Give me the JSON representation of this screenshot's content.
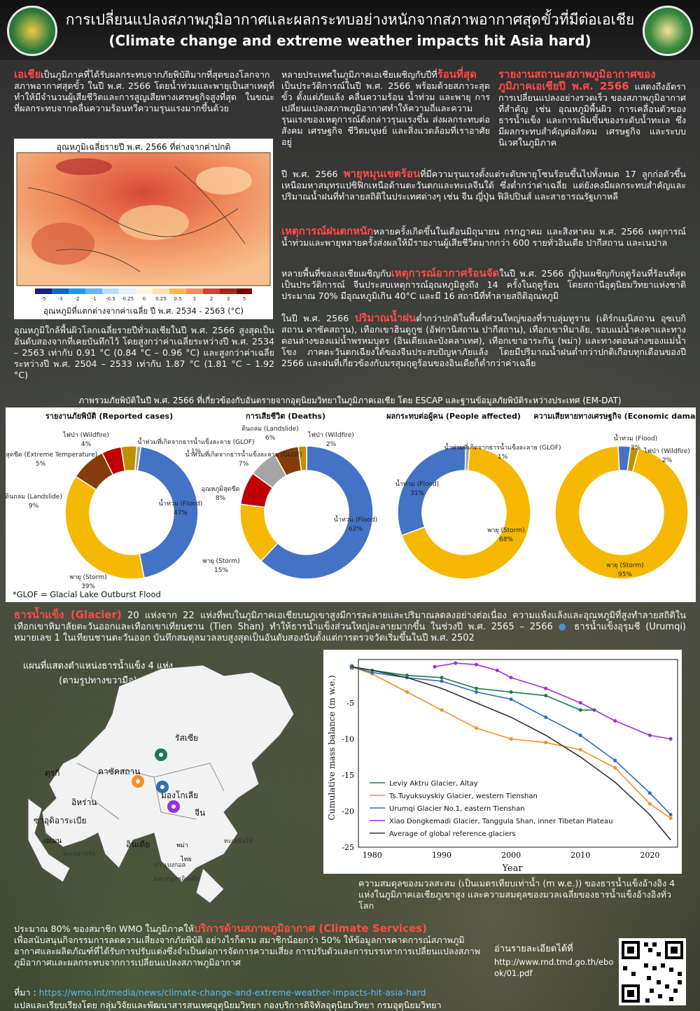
{
  "header": {
    "title_th": "การเปลี่ยนแปลงสภาพภูมิอากาศและผลกระทบอย่างหนักจากสภาพอากาศสุดขั้วที่มีต่อเอเชีย",
    "title_en": "(Climate change and extreme weather impacts hit Asia hard)"
  },
  "col1": {
    "highlight": "เอเชีย",
    "text": "เป็นภูมิภาคที่ได้รับผลกระทบจากภัยพิบัติมากที่สุดของโลกจากสภาพอากาศสุดขั้ว ในปี พ.ศ. 2566 โดยน้ำท่วมและพายุเป็นสาเหตุที่ทำให้มีจำนวนผู้เสียชีวิตและการสูญเสียทางเศรษฐกิจสูงที่สุด ในขณะที่ผลกระทบจากคลื่นความร้อนทวีความรุนแรงมากขึ้นด้วย"
  },
  "temp_map": {
    "title": "อุณหภูมิเฉลี่ยรายปี พ.ศ. 2566 ที่ต่างจากค่าปกติ",
    "scale": [
      "-5",
      "-3",
      "-2",
      "-1",
      "-0.5",
      "-0.25",
      "0",
      "0.25",
      "0.5",
      "1",
      "2",
      "3",
      "5"
    ],
    "colors": [
      "#1a237e",
      "#1565c0",
      "#2196f3",
      "#64b5f6",
      "#bbdefb",
      "#e3f2fd",
      "#fff8e1",
      "#ffe0b2",
      "#ffb74d",
      "#ff8a65",
      "#e53935",
      "#b71c1c",
      "#7f0000"
    ],
    "caption": "อุณหภูมิที่แตกต่างจากค่าเฉลี่ย ปี พ.ศ. 2534 - 2563 (°C)"
  },
  "col1_para2": "อุณหภูมิใกล้พื้นผิวโลกเฉลี่ยรายปีทั่วเอเชียในปี พ.ศ. 2566 สูงสุดเป็นอันดับสองจากที่เคยบันทึกไว้ โดยสูงกว่าค่าเฉลี่ยระหว่างปี พ.ศ. 2534 – 2563 เท่ากับ 0.91 °C (0.84 °C – 0.96 °C) และสูงกว่าค่าเฉลี่ยระหว่างปี พ.ศ. 2504 – 2533 เท่ากับ 1.87 °C (1.81 °C – 1.92 °C)",
  "col2": {
    "text_a": "หลายประเทศในภูมิภาคเอเชียเผชิญกับปีที่",
    "highlight": "ร้อนที่สุด",
    "text_b": "เป็นประวัติการณ์ในปี พ.ศ. 2566 พร้อมด้วยสภาวะสุดขั้ว ตั้งแต่ภัยแล้ง คลื่นความร้อน น้ำท่วม และพายุ การเปลี่ยนแปลงสภาพภูมิอากาศทำให้ความถี่และความรุนแรงของเหตุการณ์ดังกล่าวรุนแรงขึ้น ส่งผลกระทบต่อสังคม เศรษฐกิจ ชีวิตมนุษย์ และสิ่งแวดล้อมที่เราอาศัยอยู่"
  },
  "col3": {
    "highlight": "รายงานสถานะสภาพภูมิอากาศของภูมิภาคเอเชียปี พ.ศ. 2566",
    "text": " แสดงถึงอัตราการเปลี่ยนแปลงอย่างรวดเร็ว ของสภาพภูมิอากาศที่สำคัญ เช่น อุณหภูมิพื้นผิว การเคลื่อนตัวของธารน้ำแข็ง และการเพิ่มขึ้นของระดับน้ำทะเล ซึ่งมีผลกระทบสำคัญต่อสังคม เศรษฐกิจ และระบบนิเวศในภูมิภาค"
  },
  "para_typhoon": {
    "a": "ปี พ.ศ. 2566 ",
    "highlight": "พายุหมุนเขตร้อน",
    "b": "ที่มีความรุนแรงตั้งแต่ระดับพายุโซนร้อนขึ้นไปทั้งหมด 17 ลูกก่อตัวขึ้นเหนือมหาสมุทรแปซิฟิกเหนือด้านตะวันตกและทะเลจีนใต้ ซึ่งต่ำกว่าค่าเฉลี่ย แต่ยังคงมีผลกระทบสำคัญและปริมาณน้ำฝนที่ทำลายสถิติในประเทศต่างๆ เช่น จีน ญี่ปุ่น ฟิลิปปินส์ และสาธารณรัฐเกาหลี"
  },
  "para_rain": {
    "highlight": "เหตุการณ์ฝนตกหนัก",
    "b": "หลายครั้งเกิดขึ้นในเดือนมิถุนายน กรกฎาคม และสิงหาคม พ.ศ. 2566 เหตุการณ์น้ำท่วมและพายุหลายครั้งส่งผลให้มีรายงานผู้เสียชีวิตมากกว่า 600 รายทั่วอินเดีย ปากีสถาน และเนปาล"
  },
  "para_heat": {
    "a": "หลายพื้นที่ของเอเชียเผชิญกับ",
    "highlight": "เหตุการณ์อากาศร้อนจัด",
    "b": "ในปี พ.ศ. 2566 ญี่ปุ่นเผชิญกับฤดูร้อนที่ร้อนที่สุดเป็นประวัติการณ์ จีนประสบเหตุการณ์อุณหภูมิสูงถึง 14 ครั้งในฤดูร้อน โดยสถานีอุตุนิยมวิทยาแห่งชาติประมาณ 70% มีอุณหภูมิเกิน 40°C และมี 16 สถานีที่ทำลายสถิติอุณหภูมิ"
  },
  "para_precip": {
    "a": "ในปี พ.ศ. 2566 ",
    "highlight": "ปริมาณน้ำฝน",
    "b": "ต่ำกว่าปกติในพื้นที่ส่วนใหญ่ของที่ราบลุ่มทูราน (เติร์กเมนิสถาน อุซเบกิสถาน คาซัคสถาน), เทือกเขาฮินดูกูช (อัฟกานิสถาน ปากีสถาน), เทือกเขาหิมาลัย, รอบแม่น้ำคงคาและทางตอนล่างของแม่น้ำพรหมบุตร (อินเดียและบังคลาเทศ), เทือกเขาอาระกัน (พม่า) และทางตอนล่างของแม่น้ำโขง ภาคตะวันตกเฉียงใต้ของจีนประสบปัญหาภัยแล้ง โดยมีปริมาณน้ำฝนต่ำกว่าปกติเกือบทุกเดือนของปี 2566 และฝนที่เกี่ยวข้องกับมรสุมฤดูร้อนของอินเดียก็ต่ำกว่าค่าเฉลี่ย"
  },
  "disaster_title": "ภาพรวมภัยพิบัติในปี พ.ศ. 2566 ที่เกี่ยวข้องกับอันตรายจากอุตุนิยมวิทยาในภูมิภาคเอเชีย โดย ESCAP และฐานข้อมูลภัยพิบัติระหว่างประเทศ (EM-DAT)",
  "chart_data": [
    {
      "type": "pie",
      "title": "รายงานภัยพิบัติ (Reported cases)",
      "slices": [
        {
          "label": "น้ำท่วม (Flood)",
          "value": 47,
          "color": "#4472c4"
        },
        {
          "label": "พายุ (Storm)",
          "value": 39,
          "color": "#f5b800"
        },
        {
          "label": "ดินถล่ม (Landslide)",
          "value": 9,
          "color": "#843c0c"
        },
        {
          "label": "อุณหภูมิสุดขีด (Extreme Temperature)",
          "value": 5,
          "color": "#c00000"
        },
        {
          "label": "ไฟป่า (Wildfire)",
          "value": 4,
          "color": "#bf9000"
        },
        {
          "label": "น้ำท่วมที่เกิดจากธารน้ำแข็งละลาย (GLOF)",
          "value": 1,
          "color": "#a5a5a5"
        }
      ]
    },
    {
      "type": "pie",
      "title": "การเสียชีวิต (Deaths)",
      "slices": [
        {
          "label": "น้ำท่วม (Flood)",
          "value": 62,
          "color": "#4472c4"
        },
        {
          "label": "พายุ (Storm)",
          "value": 15,
          "color": "#f5b800"
        },
        {
          "label": "อุณหภูมิสุดขีด",
          "value": 8,
          "color": "#c00000"
        },
        {
          "label": "น้ำท่วมที่เกิดจากธารน้ำแข็งละลาย (GLOF)",
          "value": 7,
          "color": "#a5a5a5"
        },
        {
          "label": "ดินถล่ม (Landslide)",
          "value": 6,
          "color": "#843c0c"
        },
        {
          "label": "ไฟป่า (Wildfire)",
          "value": 2,
          "color": "#bf9000"
        }
      ]
    },
    {
      "type": "pie",
      "title": "ผลกระทบต่อผู้คน (People affected)",
      "slices": [
        {
          "label": "พายุ (Storm)",
          "value": 68,
          "color": "#f5b800"
        },
        {
          "label": "น้ำท่วม (Flood)",
          "value": 31,
          "color": "#4472c4"
        },
        {
          "label": "น้ำท่วมที่เกิดจากธารน้ำแข็งละลาย (GLOF)",
          "value": 1,
          "color": "#a5a5a5"
        }
      ]
    },
    {
      "type": "pie",
      "title": "ความเสียหายทางเศรษฐกิจ (Economic damage)",
      "slices": [
        {
          "label": "พายุ (Storm)",
          "value": 95,
          "color": "#f5b800"
        },
        {
          "label": "น้ำท่วม (Flood)",
          "value": 3,
          "color": "#4472c4"
        },
        {
          "label": "ไฟป่า (Wildfire)",
          "value": 2,
          "color": "#bf9000"
        }
      ]
    },
    {
      "type": "line",
      "title": "Cumulative mass balance",
      "xlabel": "Year",
      "ylabel": "Cumulative mass balance (m w.e.)",
      "xlim": [
        1978,
        2024
      ],
      "ylim": [
        -25,
        1
      ],
      "xticks": [
        1980,
        1990,
        2000,
        2010,
        2020
      ],
      "yticks": [
        0,
        -5,
        -10,
        -15,
        -20,
        -25
      ],
      "series": [
        {
          "name": "Leviy Aktru Glacier, Altay",
          "color": "#1b7a4a",
          "marker": "dot",
          "x": [
            1977,
            1980,
            1985,
            1990,
            1995,
            2000,
            2005,
            2010,
            2012
          ],
          "y": [
            0,
            -0.5,
            -1.2,
            -1.5,
            -3,
            -3.5,
            -4,
            -6,
            -6
          ]
        },
        {
          "name": "Ts.Tuyuksuyskiy Glacier, western Tienshan",
          "color": "#f28e2b",
          "marker": "dot",
          "x": [
            1977,
            1980,
            1985,
            1990,
            1995,
            2000,
            2005,
            2010,
            2015,
            2020,
            2023
          ],
          "y": [
            0,
            -1,
            -3.5,
            -6,
            -8.5,
            -10,
            -10.5,
            -11.5,
            -14,
            -19,
            -21
          ]
        },
        {
          "name": "Urumqi Glacier No.1, eastern Tienshan",
          "color": "#2e6fb5",
          "marker": "dot",
          "x": [
            1977,
            1980,
            1985,
            1990,
            1995,
            2000,
            2005,
            2010,
            2015,
            2020,
            2023
          ],
          "y": [
            0,
            -0.8,
            -1.5,
            -2,
            -3.5,
            -4.5,
            -7,
            -9.5,
            -13,
            -17.5,
            -20.5
          ]
        },
        {
          "name": "Xiao Dongkemadi Glacier, Tanggula Shan, inner Tibetan Plateau",
          "color": "#9b30d9",
          "marker": "dot",
          "x": [
            1989,
            1992,
            1995,
            1998,
            2000,
            2005,
            2010,
            2015,
            2020,
            2023
          ],
          "y": [
            0,
            0.5,
            0.3,
            -0.5,
            -1.5,
            -3,
            -5,
            -7.5,
            -9.5,
            -10
          ]
        },
        {
          "name": "Average of global reference glaciers",
          "color": "#333333",
          "marker": "none",
          "x": [
            1977,
            1980,
            1985,
            1990,
            1995,
            2000,
            2005,
            2010,
            2015,
            2020,
            2023
          ],
          "y": [
            0,
            -0.5,
            -1.5,
            -3,
            -5,
            -7,
            -9.5,
            -12.5,
            -16,
            -20.5,
            -24
          ]
        }
      ]
    }
  ],
  "glof_note": "*GLOF = Glacial Lake Outburst Flood",
  "glacier_para": {
    "highlight": "ธารน้ำแข็ง (Glacier)",
    "a": " 20 แห่งจาก 22 แห่งที่พบในภูมิภาคเอเชียบนภูเขาสูงมีการละลายและปริมาณลดลงอย่างต่อเนื่อง ความแห้งแล้งและอุณหภูมิที่สูงทำลายสถิติในเทือกเขาหิมาลัยตะวันออกและเทือกเขาเทียนชาน (Tien Shan) ทำให้ธารน้ำแข็งส่วนใหญ่ละลายมากขึ้น ในช่วงปี พ.ศ. 2565 – 2566 ",
    "b": "ธารน้ำแข็งอุรุมชี (Urumqi) หมายเลข 1 ในเทียนชานตะวันออก บันทึกสมดุลมวลลบสูงสุดเป็นอันดับสองนับตั้งแต่การตรวจวัดเริ่มขึ้นในปี พ.ศ. 2502"
  },
  "glacier_map": {
    "title": "แผนที่แสดงตำแหน่งธารน้ำแข็ง 4 แห่ง (ตามรูปทางขวามือ)",
    "labels": [
      "รัสเซีย",
      "คาซัคสถาน",
      "มองโกเลีย",
      "จีน",
      "ตุรกี",
      "อิหร่าน",
      "ซาอุดิอาระเบีย",
      "อินเดีย",
      "พม่า",
      "ไทย",
      "เยเมน",
      "ทะเลอาหรับ",
      "ทะเลจีนใต้",
      "อ่าวเบงกอล",
      "มหาสมุทรอินเดีย"
    ]
  },
  "line_caption": "ความสมดุลของมวลสะสม (เป็นเมตรเทียบเท่าน้ำ (m w.e.)) ของธารน้ำแข็งอ้างอิง 4 แห่งในภูมิภาคเอเชียภูเขาสูง และความสมดุลของมวลเฉลี่ยของธารน้ำแข็งอ้างอิงทั่วโลก",
  "services": {
    "a": "ประมาณ 80% ของสมาชิก WMO ในภูมิภาคให้",
    "highlight": "บริการด้านสภาพภูมิอากาศ (Climate Services)",
    "b": "เพื่อสนับสนุนกิจกรรมการลดความเสี่ยงจากภัยพิบัติ อย่างไรก็ตาม สมาชิกน้อยกว่า 50% ให้ข้อมูลการคาดการณ์สภาพภูมิอากาศและผลิตภัณฑ์ที่ได้รับการปรับแต่งซึ่งจำเป็นต่อการจัดการความเสี่ยง การปรับตัวและการบรรเทาการเปลี่ยนแปลงสภาพภูมิอากาศและผลกระทบจากการเปลี่ยนแปลงสภาพภูมิอากาศ"
  },
  "more_info": {
    "label": "อ่านรายละเอียดได้ที่",
    "url": "http://www.rnd.tmd.go.th/ebook/01.pdf"
  },
  "source": {
    "label": "ที่มา : ",
    "url": "https://wmo.int/media/news/climate-change-and-extreme-weather-impacts-hit-asia-hard"
  },
  "credit": "แปลและเรียบเรียงโดย กลุ่มวิจัยและพัฒนาสารสนเทศอุตุนิยมวิทยา กองบริการดิจิทัลอุตุนิยมวิทยา กรมอุตุนิยมวิทยา"
}
